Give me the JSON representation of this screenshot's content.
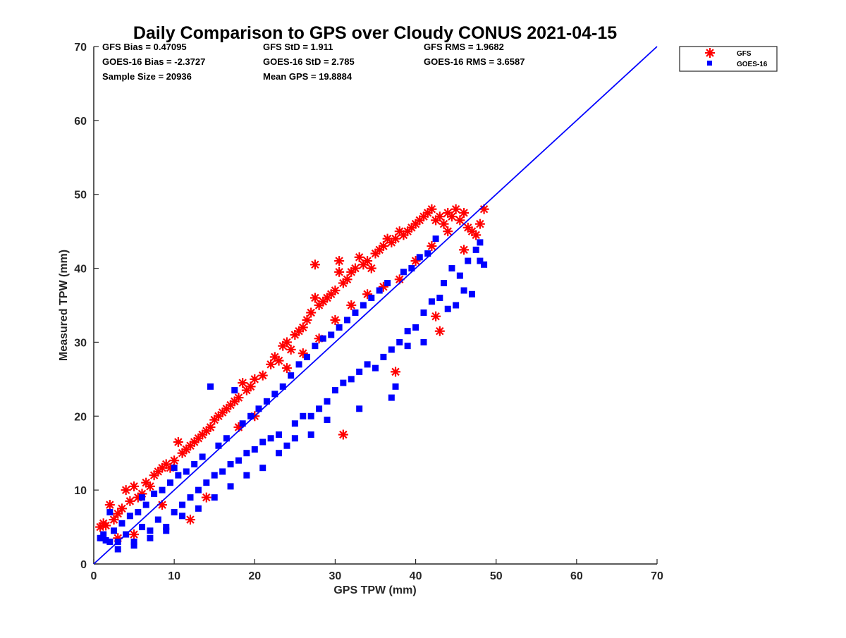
{
  "chart_data": {
    "type": "scatter",
    "title": "Daily Comparison to GPS over Cloudy CONUS 2021-04-15",
    "xlabel": "GPS TPW (mm)",
    "ylabel": "Measured TPW (mm)",
    "xlim": [
      0,
      70
    ],
    "ylim": [
      0,
      70
    ],
    "xticks": [
      "0",
      "10",
      "20",
      "30",
      "40",
      "50",
      "60",
      "70"
    ],
    "yticks": [
      "0",
      "10",
      "20",
      "30",
      "40",
      "50",
      "60",
      "70"
    ],
    "grid": false,
    "legend_position": "outside-top-right",
    "reference_line": {
      "x": [
        0,
        70
      ],
      "y": [
        0,
        70
      ],
      "color": "#0000ff"
    },
    "stats": [
      [
        "GFS Bias = 0.47095",
        "GFS StD = 1.911",
        "GFS RMS = 1.9682"
      ],
      [
        "GOES-16 Bias = -2.3727",
        "GOES-16 StD = 2.785",
        "GOES-16 RMS = 3.6587"
      ],
      [
        "Sample Size = 20936",
        "Mean GPS = 19.8884",
        ""
      ]
    ],
    "series": [
      {
        "name": "GFS",
        "marker": "asterisk",
        "color": "#ff0000",
        "points": [
          [
            0.8,
            5.0
          ],
          [
            1.2,
            5.5
          ],
          [
            1.5,
            5.2
          ],
          [
            2.0,
            8.0
          ],
          [
            2.5,
            6.0
          ],
          [
            3.0,
            6.8
          ],
          [
            3.5,
            7.5
          ],
          [
            4.0,
            10.0
          ],
          [
            4.5,
            8.5
          ],
          [
            5.0,
            10.5
          ],
          [
            5.5,
            9.0
          ],
          [
            6.0,
            9.5
          ],
          [
            6.5,
            11.0
          ],
          [
            7.0,
            10.5
          ],
          [
            7.5,
            12.0
          ],
          [
            8.0,
            12.5
          ],
          [
            8.5,
            13.0
          ],
          [
            9.0,
            13.5
          ],
          [
            9.5,
            13.0
          ],
          [
            10.0,
            14.0
          ],
          [
            10.5,
            16.5
          ],
          [
            11.0,
            15.0
          ],
          [
            11.5,
            15.5
          ],
          [
            12.0,
            16.0
          ],
          [
            12.5,
            16.5
          ],
          [
            13.0,
            17.0
          ],
          [
            13.5,
            17.5
          ],
          [
            14.0,
            18.0
          ],
          [
            14.5,
            18.5
          ],
          [
            15.0,
            19.5
          ],
          [
            15.5,
            20.0
          ],
          [
            16.0,
            20.5
          ],
          [
            16.5,
            21.0
          ],
          [
            17.0,
            21.5
          ],
          [
            17.5,
            22.0
          ],
          [
            18.0,
            22.5
          ],
          [
            18.5,
            24.5
          ],
          [
            19.0,
            23.5
          ],
          [
            19.5,
            24.0
          ],
          [
            20.0,
            25.0
          ],
          [
            21.0,
            25.5
          ],
          [
            22.0,
            27.0
          ],
          [
            22.5,
            28.0
          ],
          [
            23.0,
            27.5
          ],
          [
            23.5,
            29.5
          ],
          [
            24.0,
            30.0
          ],
          [
            24.5,
            29.0
          ],
          [
            25.0,
            31.0
          ],
          [
            25.5,
            31.5
          ],
          [
            26.0,
            32.0
          ],
          [
            26.5,
            33.0
          ],
          [
            27.0,
            34.0
          ],
          [
            27.5,
            36.0
          ],
          [
            27.5,
            40.5
          ],
          [
            28.0,
            35.0
          ],
          [
            28.5,
            35.5
          ],
          [
            29.0,
            36.0
          ],
          [
            29.5,
            36.5
          ],
          [
            30.0,
            37.0
          ],
          [
            30.5,
            39.5
          ],
          [
            30.5,
            41.0
          ],
          [
            31.0,
            38.0
          ],
          [
            31.5,
            38.5
          ],
          [
            32.0,
            39.5
          ],
          [
            32.5,
            40.0
          ],
          [
            33.0,
            41.5
          ],
          [
            33.5,
            40.5
          ],
          [
            34.0,
            41.0
          ],
          [
            34.5,
            40.0
          ],
          [
            35.0,
            42.0
          ],
          [
            35.5,
            42.5
          ],
          [
            36.0,
            43.0
          ],
          [
            36.5,
            44.0
          ],
          [
            37.0,
            43.5
          ],
          [
            37.5,
            44.0
          ],
          [
            38.0,
            45.0
          ],
          [
            38.5,
            44.5
          ],
          [
            39.0,
            45.0
          ],
          [
            39.5,
            45.5
          ],
          [
            40.0,
            46.0
          ],
          [
            40.5,
            46.5
          ],
          [
            41.0,
            47.0
          ],
          [
            41.5,
            47.5
          ],
          [
            42.0,
            48.0
          ],
          [
            42.5,
            46.5
          ],
          [
            43.0,
            47.0
          ],
          [
            43.5,
            46.0
          ],
          [
            44.0,
            47.5
          ],
          [
            44.5,
            47.0
          ],
          [
            45.0,
            48.0
          ],
          [
            45.5,
            46.5
          ],
          [
            46.0,
            47.5
          ],
          [
            46.5,
            45.5
          ],
          [
            47.0,
            45.0
          ],
          [
            47.5,
            44.5
          ],
          [
            48.0,
            46.0
          ],
          [
            48.5,
            48.0
          ],
          [
            46.0,
            42.5
          ],
          [
            42.5,
            33.5
          ],
          [
            43.0,
            31.5
          ],
          [
            31.0,
            17.5
          ],
          [
            37.5,
            26.0
          ],
          [
            14.0,
            9.0
          ],
          [
            12.0,
            6.0
          ],
          [
            5.0,
            4.0
          ],
          [
            3.0,
            3.5
          ],
          [
            8.5,
            8.0
          ],
          [
            18.0,
            18.5
          ],
          [
            20.0,
            20.0
          ],
          [
            24.0,
            26.5
          ],
          [
            26.0,
            28.5
          ],
          [
            28.0,
            30.5
          ],
          [
            30.0,
            33.0
          ],
          [
            32.0,
            35.0
          ],
          [
            34.0,
            36.5
          ],
          [
            36.0,
            37.5
          ],
          [
            38.0,
            38.5
          ],
          [
            40.0,
            41.0
          ],
          [
            42.0,
            43.0
          ],
          [
            44.0,
            45.0
          ]
        ]
      },
      {
        "name": "GOES-16",
        "marker": "square",
        "color": "#0000ff",
        "points": [
          [
            0.8,
            3.5
          ],
          [
            1.2,
            4.0
          ],
          [
            1.5,
            3.2
          ],
          [
            2.0,
            7.0
          ],
          [
            2.5,
            4.5
          ],
          [
            3.0,
            3.0
          ],
          [
            3.5,
            5.5
          ],
          [
            4.0,
            4.0
          ],
          [
            4.5,
            6.5
          ],
          [
            5.0,
            3.0
          ],
          [
            5.5,
            7.0
          ],
          [
            6.0,
            5.0
          ],
          [
            6.5,
            8.0
          ],
          [
            7.0,
            4.5
          ],
          [
            7.5,
            9.5
          ],
          [
            8.0,
            6.0
          ],
          [
            8.5,
            10.0
          ],
          [
            9.0,
            5.0
          ],
          [
            9.5,
            11.0
          ],
          [
            10.0,
            7.0
          ],
          [
            10.5,
            12.0
          ],
          [
            11.0,
            8.0
          ],
          [
            11.5,
            12.5
          ],
          [
            12.0,
            9.0
          ],
          [
            12.5,
            13.5
          ],
          [
            13.0,
            10.0
          ],
          [
            13.5,
            14.5
          ],
          [
            14.0,
            11.0
          ],
          [
            14.5,
            24.0
          ],
          [
            15.0,
            12.0
          ],
          [
            15.5,
            16.0
          ],
          [
            16.0,
            12.5
          ],
          [
            16.5,
            17.0
          ],
          [
            17.0,
            13.5
          ],
          [
            17.5,
            23.5
          ],
          [
            18.0,
            14.0
          ],
          [
            18.5,
            19.0
          ],
          [
            19.0,
            15.0
          ],
          [
            19.5,
            20.0
          ],
          [
            20.0,
            15.5
          ],
          [
            20.5,
            21.0
          ],
          [
            21.0,
            16.5
          ],
          [
            21.5,
            22.0
          ],
          [
            22.0,
            17.0
          ],
          [
            22.5,
            23.0
          ],
          [
            23.0,
            17.5
          ],
          [
            23.5,
            24.0
          ],
          [
            24.0,
            16.0
          ],
          [
            24.5,
            25.5
          ],
          [
            25.0,
            19.0
          ],
          [
            25.5,
            27.0
          ],
          [
            26.0,
            20.0
          ],
          [
            26.5,
            28.0
          ],
          [
            27.0,
            17.5
          ],
          [
            27.5,
            29.5
          ],
          [
            28.0,
            21.0
          ],
          [
            28.5,
            30.5
          ],
          [
            29.0,
            22.0
          ],
          [
            29.5,
            31.0
          ],
          [
            30.0,
            23.5
          ],
          [
            30.5,
            32.0
          ],
          [
            31.0,
            24.5
          ],
          [
            31.5,
            33.0
          ],
          [
            32.0,
            25.0
          ],
          [
            32.5,
            34.0
          ],
          [
            33.0,
            26.0
          ],
          [
            33.5,
            35.0
          ],
          [
            34.0,
            27.0
          ],
          [
            34.5,
            36.0
          ],
          [
            35.0,
            26.5
          ],
          [
            35.5,
            37.0
          ],
          [
            36.0,
            28.0
          ],
          [
            36.5,
            38.0
          ],
          [
            37.0,
            29.0
          ],
          [
            37.5,
            24.0
          ],
          [
            38.0,
            30.0
          ],
          [
            38.5,
            39.5
          ],
          [
            39.0,
            31.5
          ],
          [
            39.5,
            40.0
          ],
          [
            40.0,
            32.0
          ],
          [
            40.5,
            41.5
          ],
          [
            41.0,
            34.0
          ],
          [
            41.5,
            42.0
          ],
          [
            42.0,
            35.5
          ],
          [
            42.5,
            44.0
          ],
          [
            43.0,
            36.0
          ],
          [
            43.5,
            38.0
          ],
          [
            44.0,
            34.5
          ],
          [
            44.5,
            40.0
          ],
          [
            45.0,
            35.0
          ],
          [
            45.5,
            39.0
          ],
          [
            46.0,
            37.0
          ],
          [
            46.5,
            41.0
          ],
          [
            47.0,
            36.5
          ],
          [
            47.5,
            42.5
          ],
          [
            48.0,
            41.0
          ],
          [
            48.5,
            40.5
          ],
          [
            48.0,
            43.5
          ],
          [
            41.0,
            30.0
          ],
          [
            39.0,
            29.5
          ],
          [
            37.0,
            22.5
          ],
          [
            33.0,
            21.0
          ],
          [
            29.0,
            19.5
          ],
          [
            27.0,
            20.0
          ],
          [
            25.0,
            17.0
          ],
          [
            23.0,
            15.0
          ],
          [
            21.0,
            13.0
          ],
          [
            19.0,
            12.0
          ],
          [
            17.0,
            10.5
          ],
          [
            15.0,
            9.0
          ],
          [
            13.0,
            7.5
          ],
          [
            11.0,
            6.5
          ],
          [
            9.0,
            4.5
          ],
          [
            7.0,
            3.5
          ],
          [
            5.0,
            2.5
          ],
          [
            3.0,
            2.0
          ],
          [
            2.0,
            3.0
          ],
          [
            1.0,
            3.5
          ],
          [
            6.0,
            9.0
          ],
          [
            10.0,
            13.0
          ]
        ]
      }
    ]
  }
}
